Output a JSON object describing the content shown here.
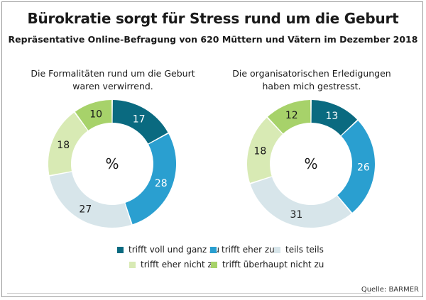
{
  "title": "Bürokratie sorgt für Stress rund um die Geburt",
  "subtitle": "Repräsentative Online-Befragung von 620 Müttern und Vätern im Dezember 2018",
  "source": "Quelle: BARMER",
  "colors": {
    "trifft_voll": "#0a6a80",
    "trifft_eher": "#2a9fd0",
    "teils": "#d7e5ea",
    "eher_nicht": "#d8eab4",
    "ueberhaupt_nicht": "#a7d26a"
  },
  "legend": [
    {
      "label": "trifft voll und ganz zu",
      "color": "#0a6a80"
    },
    {
      "label": "trifft eher zu",
      "color": "#2a9fd0"
    },
    {
      "label": "teils teils",
      "color": "#d7e5ea"
    },
    {
      "label": "trifft eher nicht zu",
      "color": "#d8eab4"
    },
    {
      "label": "trifft überhaupt nicht zu",
      "color": "#a7d26a"
    }
  ],
  "chart_data": [
    {
      "type": "pie",
      "title_lines": [
        "Die Formalitäten rund um die Geburt",
        "waren verwirrend."
      ],
      "center_label": "%",
      "categories": [
        "trifft voll und ganz zu",
        "trifft eher zu",
        "teils teils",
        "trifft eher nicht zu",
        "trifft überhaupt nicht zu"
      ],
      "values": [
        17,
        28,
        27,
        18,
        10
      ]
    },
    {
      "type": "pie",
      "title_lines": [
        "Die organisatorischen Erledigungen",
        "haben mich gestresst."
      ],
      "center_label": "%",
      "categories": [
        "trifft voll und ganz zu",
        "trifft eher zu",
        "teils teils",
        "trifft eher nicht zu",
        "trifft überhaupt nicht zu"
      ],
      "values": [
        13,
        26,
        31,
        18,
        12
      ]
    }
  ]
}
